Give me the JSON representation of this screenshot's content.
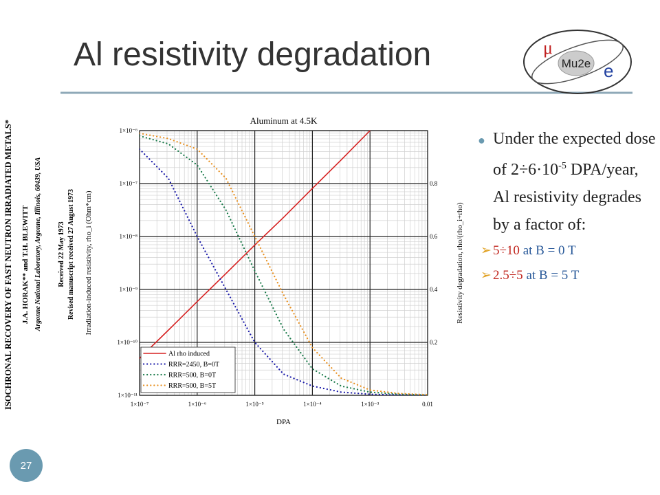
{
  "slide": {
    "title": "Al resistivity degradation",
    "page_number": "27",
    "logo": {
      "mu": "μ",
      "name": "Mu2e",
      "e": "e"
    },
    "paper": {
      "title": "ISOCHRONAL RECOVERY OF FAST NEUTRON IRRADIATED METALS*",
      "authors": "J.A. HORAK** and T.H. BLEWITT",
      "affiliation": "Argonne National Laboratory, Argonne, Illinois, 60439, USA",
      "received": "Received 22 May 1973",
      "revised": "Revised manuscript received 27 August 1973"
    },
    "bullet": {
      "text_a": "Under the expected dose of 2÷6·10",
      "sup": "-5",
      "text_b": " DPA/year, Al resistivity degrades by a factor of:"
    },
    "sub_bullets": [
      {
        "factor": "5÷10",
        "condition": " at B = 0 T"
      },
      {
        "factor": "2.5÷5",
        "condition": " at B = 5 T"
      }
    ]
  },
  "chart_data": {
    "type": "line",
    "title": "Aluminum at 4.5K",
    "x_label": "DPA",
    "y_label": "Irradiation-induced resistivity, rho_i (Ohm*cm)",
    "y2_label": "Resistivity degradation, rho/(rho_i+rho)",
    "x": [
      1e-07,
      3.16e-07,
      1e-06,
      3.16e-06,
      1e-05,
      3.16e-05,
      0.0001,
      0.000316,
      0.001,
      0.00316,
      0.01
    ],
    "series": [
      {
        "name": "Al rho induced",
        "color": "#d62020",
        "values": [
          5e-11,
          1.7e-10,
          5.9e-10,
          2e-09,
          6.9e-09,
          2.3e-08,
          8.1e-08,
          2.8e-07,
          1e-06,
          null,
          null
        ]
      },
      {
        "name": "RRR=2450, B=0T",
        "color": "#1a1aa8",
        "axis": "y2",
        "values": [
          0.93,
          0.82,
          0.6,
          0.4,
          0.2,
          0.08,
          0.035,
          0.012,
          0.004,
          0.001,
          0
        ]
      },
      {
        "name": "RRR=500, B=0T",
        "color": "#1a7a4a",
        "axis": "y2",
        "values": [
          0.98,
          0.95,
          0.87,
          0.7,
          0.47,
          0.25,
          0.1,
          0.035,
          0.012,
          0.004,
          0.001
        ]
      },
      {
        "name": "RRR=500, B=5T",
        "color": "#e89020",
        "axis": "y2",
        "values": [
          0.99,
          0.97,
          0.93,
          0.82,
          0.6,
          0.38,
          0.18,
          0.065,
          0.02,
          0.007,
          0.002
        ]
      }
    ],
    "xscale": "log",
    "yscale": "log",
    "grid": true,
    "legend": "lower left",
    "xlim": [
      1e-07,
      0.01
    ],
    "xticks": [
      {
        "value": 1e-07,
        "label": "1×10⁻⁷"
      },
      {
        "value": 1e-06,
        "label": "1×10⁻⁶"
      },
      {
        "value": 1e-05,
        "label": "1×10⁻⁵"
      },
      {
        "value": 0.0001,
        "label": "1×10⁻⁴"
      },
      {
        "value": 0.001,
        "label": "1×10⁻³"
      },
      0.01
    ],
    "ylim": [
      1e-11,
      1e-06
    ],
    "yticks": [
      {
        "value": 1e-11,
        "label": "1×10⁻¹¹"
      },
      {
        "value": 1e-10,
        "label": "1×10⁻¹⁰"
      },
      {
        "value": 1e-09,
        "label": "1×10⁻⁹"
      },
      {
        "value": 1e-08,
        "label": "1×10⁻⁸"
      },
      {
        "value": 1e-07,
        "label": "1×10⁻⁷"
      },
      {
        "value": 1e-06,
        "label": "1×10⁻⁶"
      }
    ],
    "y2lim": [
      0,
      1
    ],
    "y2ticks": [
      0.2,
      0.4,
      0.6,
      0.8
    ]
  }
}
